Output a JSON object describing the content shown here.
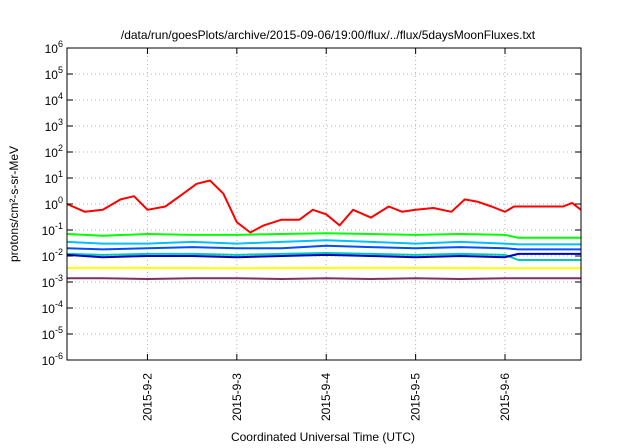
{
  "chart_data": {
    "type": "line",
    "title": "/data/run/goesPlots/archive/2015-09-06/19:00/flux/../flux/5daysMoonFluxes.txt",
    "xlabel": "Coordinated Universal Time (UTC)",
    "ylabel": "protons/cm²-s-sr-MeV",
    "yscale": "log",
    "ylim": [
      1e-06,
      1000000.0
    ],
    "xlim": [
      1.1,
      6.85
    ],
    "x_unit": "days of September 2015",
    "x_ticks": [
      {
        "value": 2,
        "label": "2015-9-2"
      },
      {
        "value": 3,
        "label": "2015-9-3"
      },
      {
        "value": 4,
        "label": "2015-9-4"
      },
      {
        "value": 5,
        "label": "2015-9-5"
      },
      {
        "value": 6,
        "label": "2015-9-6"
      }
    ],
    "y_ticks": [
      {
        "base": "10",
        "exp": "-6",
        "value": 1e-06
      },
      {
        "base": "10",
        "exp": "-5",
        "value": 1e-05
      },
      {
        "base": "10",
        "exp": "-4",
        "value": 0.0001
      },
      {
        "base": "10",
        "exp": "-3",
        "value": 0.001
      },
      {
        "base": "10",
        "exp": "-2",
        "value": 0.01
      },
      {
        "base": "10",
        "exp": "-1",
        "value": 0.1
      },
      {
        "base": "10",
        "exp": "0",
        "value": 1
      },
      {
        "base": "10",
        "exp": "1",
        "value": 10
      },
      {
        "base": "10",
        "exp": "2",
        "value": 100
      },
      {
        "base": "10",
        "exp": "3",
        "value": 1000
      },
      {
        "base": "10",
        "exp": "4",
        "value": 10000
      },
      {
        "base": "10",
        "exp": "5",
        "value": 100000
      },
      {
        "base": "10",
        "exp": "6",
        "value": 1000000
      }
    ],
    "grid": true,
    "series": [
      {
        "color": "#ff0000",
        "x": [
          1.1,
          1.3,
          1.5,
          1.7,
          1.85,
          2.0,
          2.2,
          2.4,
          2.55,
          2.7,
          2.85,
          3.0,
          3.15,
          3.3,
          3.5,
          3.7,
          3.85,
          4.0,
          4.15,
          4.3,
          4.5,
          4.7,
          4.85,
          5.0,
          5.2,
          5.4,
          5.55,
          5.7,
          5.85,
          6.0,
          6.1,
          6.3,
          6.5,
          6.65,
          6.75,
          6.85
        ],
        "y": [
          1.0,
          0.5,
          0.6,
          1.5,
          2.0,
          0.6,
          0.8,
          2.5,
          6.0,
          8.0,
          2.5,
          0.2,
          0.08,
          0.15,
          0.25,
          0.25,
          0.6,
          0.4,
          0.15,
          0.6,
          0.3,
          0.8,
          0.5,
          0.6,
          0.7,
          0.5,
          1.5,
          1.2,
          0.8,
          0.5,
          0.8,
          0.8,
          0.8,
          0.8,
          1.1,
          0.6
        ]
      },
      {
        "color": "#00ff00",
        "x": [
          1.1,
          1.5,
          2.0,
          2.5,
          3.0,
          3.5,
          4.0,
          4.5,
          5.0,
          5.5,
          6.0,
          6.15,
          6.85
        ],
        "y": [
          0.07,
          0.06,
          0.07,
          0.065,
          0.065,
          0.07,
          0.075,
          0.07,
          0.065,
          0.07,
          0.065,
          0.05,
          0.05
        ]
      },
      {
        "color": "#00c0ff",
        "x": [
          1.1,
          1.5,
          2.0,
          2.5,
          3.0,
          3.5,
          4.0,
          4.5,
          5.0,
          5.5,
          6.0,
          6.15,
          6.85
        ],
        "y": [
          0.035,
          0.03,
          0.03,
          0.035,
          0.03,
          0.035,
          0.04,
          0.035,
          0.03,
          0.035,
          0.03,
          0.028,
          0.028
        ]
      },
      {
        "color": "#0050ff",
        "x": [
          1.1,
          1.5,
          2.0,
          2.5,
          3.0,
          3.5,
          4.0,
          4.5,
          5.0,
          5.5,
          6.0,
          6.15,
          6.85
        ],
        "y": [
          0.02,
          0.018,
          0.02,
          0.022,
          0.02,
          0.02,
          0.025,
          0.022,
          0.02,
          0.022,
          0.02,
          0.018,
          0.018
        ]
      },
      {
        "color": "#00c8b4",
        "x": [
          1.1,
          1.5,
          2.0,
          2.5,
          3.0,
          3.5,
          4.0,
          4.5,
          5.0,
          5.5,
          6.0,
          6.15,
          6.85
        ],
        "y": [
          0.012,
          0.011,
          0.012,
          0.012,
          0.011,
          0.012,
          0.013,
          0.012,
          0.011,
          0.012,
          0.011,
          0.007,
          0.007
        ]
      },
      {
        "color": "#0000c8",
        "x": [
          1.1,
          1.5,
          2.0,
          2.5,
          3.0,
          3.5,
          4.0,
          4.5,
          5.0,
          5.5,
          6.0,
          6.15,
          6.85
        ],
        "y": [
          0.011,
          0.009,
          0.01,
          0.01,
          0.009,
          0.01,
          0.011,
          0.01,
          0.009,
          0.01,
          0.009,
          0.012,
          0.012
        ]
      },
      {
        "color": "#ffff00",
        "x": [
          1.1,
          2.0,
          3.0,
          4.0,
          5.0,
          6.0,
          6.85
        ],
        "y": [
          0.0035,
          0.0035,
          0.0034,
          0.0035,
          0.0035,
          0.0034,
          0.0034
        ]
      },
      {
        "color": "#803060",
        "x": [
          1.1,
          1.5,
          2.0,
          2.5,
          3.0,
          3.5,
          4.0,
          4.5,
          5.0,
          5.5,
          6.0,
          6.5,
          6.85
        ],
        "y": [
          0.0014,
          0.0014,
          0.0013,
          0.0014,
          0.0014,
          0.0013,
          0.0014,
          0.0013,
          0.0014,
          0.0013,
          0.0014,
          0.0014,
          0.0014
        ]
      }
    ]
  }
}
